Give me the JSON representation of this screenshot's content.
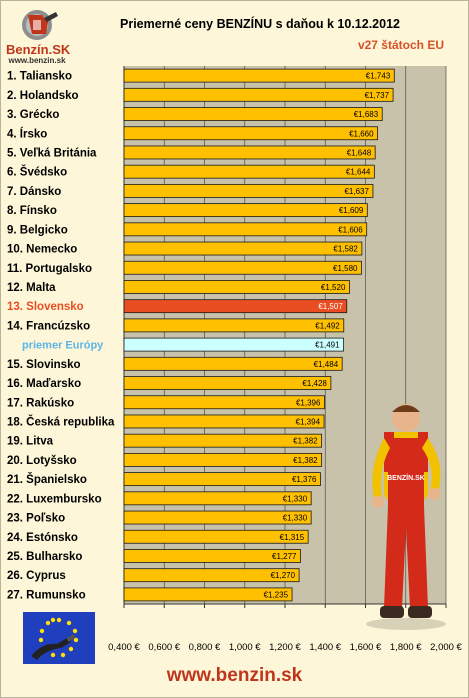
{
  "header": {
    "logo_brand": "Benzín.SK",
    "logo_url": "www.benzin.sk",
    "title": "Priemerné ceny BENZÍNU s daňou k 10.12.2012",
    "subtitle": "v27 štátoch EU"
  },
  "footer": {
    "url": "www.benzin.sk"
  },
  "mascot": {
    "shirt_text": "BENZÍN.SK"
  },
  "colors": {
    "bar": "#ffc000",
    "highlight_bar": "#e94e23",
    "highlight_text": "#e94e23",
    "average_bar": "#ccffff",
    "average_text": "#5bb5e8",
    "plot_background": "#c8c2aa",
    "page_background": "#fdf6d8",
    "brand": "#c0361c"
  },
  "chart_data": {
    "type": "bar",
    "orientation": "horizontal",
    "title": "Priemerné ceny BENZÍNU s daňou k 10.12.2012",
    "subtitle": "v27 štátoch EU",
    "xlim": [
      0.4,
      2.0
    ],
    "grid": true,
    "x_ticks": [
      "0,400 €",
      "0,600 €",
      "0,800 €",
      "1,000 €",
      "1,200 €",
      "1,400 €",
      "1,600 €",
      "1,800 €",
      "2,000 €"
    ],
    "categories": [
      "1. Taliansko",
      "2. Holandsko",
      "3. Grécko",
      "4. Írsko",
      "5. Veľká Británia",
      "6. Švédsko",
      "7. Dánsko",
      "8. Fínsko",
      "9. Belgicko",
      "10. Nemecko",
      "11. Portugalsko",
      "12. Malta",
      "13. Slovensko",
      "14. Francúzsko",
      "priemer Európy",
      "15. Slovinsko",
      "16. Maďarsko",
      "17. Rakúsko",
      "18. Česká republika",
      "19. Litva",
      "20. Lotyšsko",
      "21. Španielsko",
      "22. Luxembursko",
      "23. Poľsko",
      "24. Estónsko",
      "25. Bulharsko",
      "26. Cyprus",
      "27. Rumunsko"
    ],
    "values": [
      1.743,
      1.737,
      1.683,
      1.66,
      1.648,
      1.644,
      1.637,
      1.609,
      1.606,
      1.582,
      1.58,
      1.52,
      1.507,
      1.492,
      1.491,
      1.484,
      1.428,
      1.396,
      1.394,
      1.382,
      1.382,
      1.376,
      1.33,
      1.33,
      1.315,
      1.277,
      1.27,
      1.235
    ],
    "value_labels": [
      "€1,743",
      "€1,737",
      "€1,683",
      "€1,660",
      "€1,648",
      "€1,644",
      "€1,637",
      "€1,609",
      "€1,606",
      "€1,582",
      "€1,580",
      "€1,520",
      "€1,507",
      "€1,492",
      "€1,491",
      "€1,484",
      "€1,428",
      "€1,396",
      "€1,394",
      "€1,382",
      "€1,382",
      "€1,376",
      "€1,330",
      "€1,330",
      "€1,315",
      "€1,277",
      "€1,270",
      "€1,235"
    ],
    "highlight_index": 12,
    "average_index": 14
  }
}
